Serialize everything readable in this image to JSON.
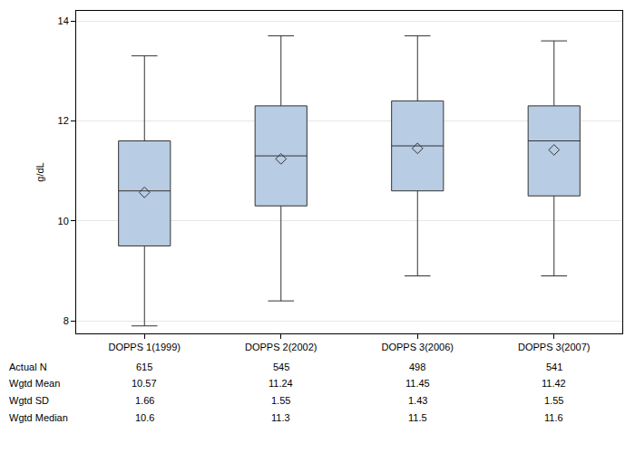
{
  "chart_data": {
    "type": "box",
    "ylabel": "g/dL",
    "categories": [
      "DOPPS 1(1999)",
      "DOPPS 2(2002)",
      "DOPPS 3(2006)",
      "DOPPS 3(2007)"
    ],
    "lower_whisker": [
      7.9,
      8.4,
      8.9,
      8.9
    ],
    "q1": [
      9.5,
      10.3,
      10.6,
      10.5
    ],
    "q3": [
      11.6,
      12.3,
      12.4,
      12.3
    ],
    "upper_whisker": [
      13.3,
      13.7,
      13.7,
      13.6
    ],
    "color": "#b8cce4",
    "marker": "diamond",
    "grid": true,
    "ylim": [
      7.75,
      14.2
    ],
    "yticks": [
      8,
      10,
      12,
      14
    ],
    "stats": {
      "n": {
        "label": "Actual N",
        "values": [
          615,
          545,
          498,
          541
        ]
      },
      "mean": {
        "label": "Wgtd Mean",
        "values": [
          10.57,
          11.24,
          11.45,
          11.42
        ]
      },
      "sd": {
        "label": "Wgtd SD",
        "values": [
          1.66,
          1.55,
          1.43,
          1.55
        ]
      },
      "median": {
        "label": "Wgtd Median",
        "values": [
          10.6,
          11.3,
          11.5,
          11.6
        ]
      }
    }
  }
}
